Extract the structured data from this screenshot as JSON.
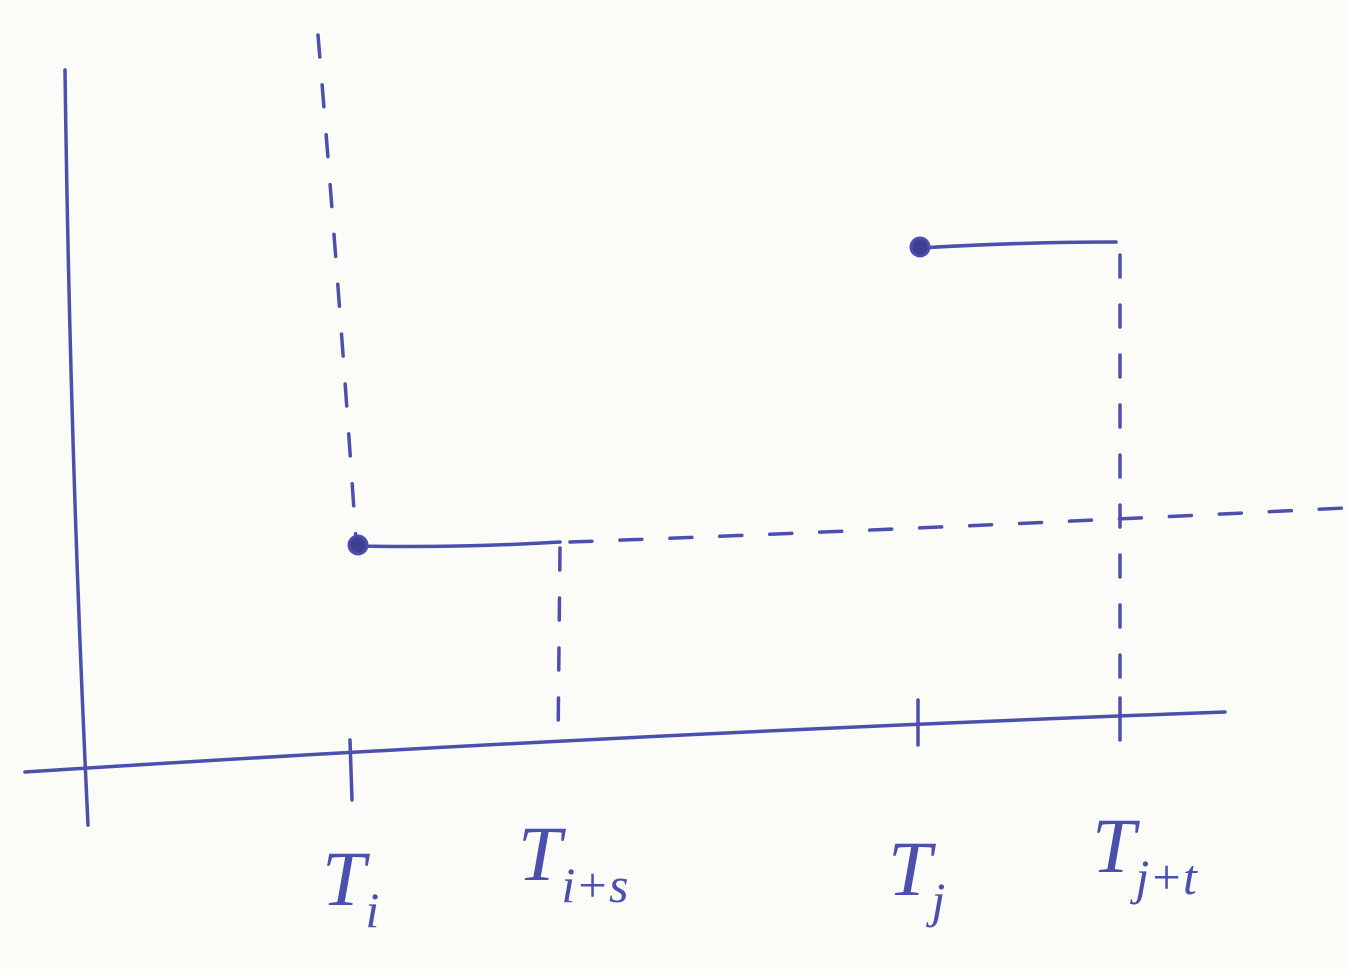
{
  "labels": [
    {
      "base": "T",
      "sub": "i"
    },
    {
      "base": "T",
      "sub": "i+s"
    },
    {
      "base": "T",
      "sub": "j"
    },
    {
      "base": "T",
      "sub": "j+t"
    }
  ]
}
